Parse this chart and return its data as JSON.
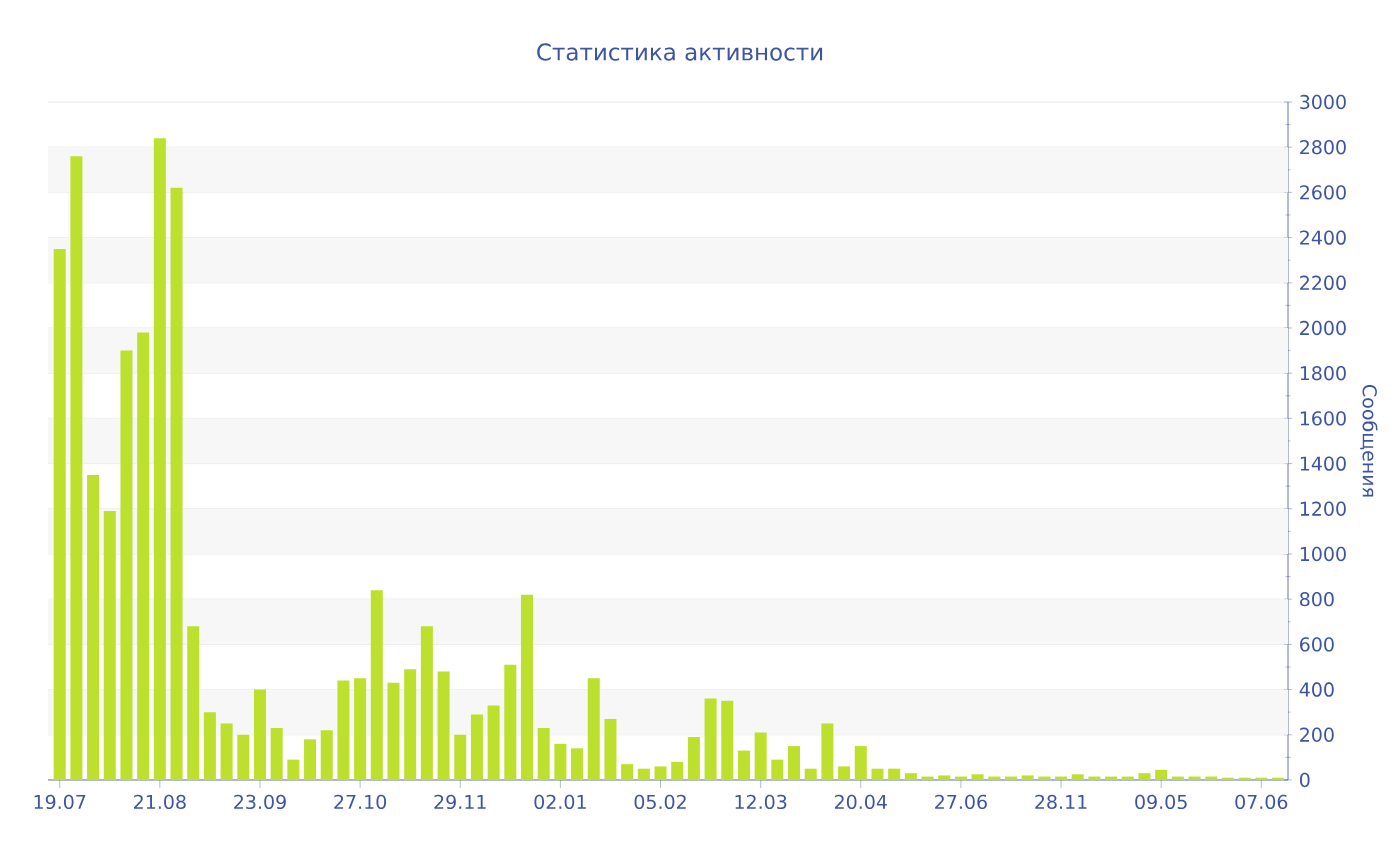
{
  "chart_data": {
    "type": "bar",
    "title": "Статистика активности",
    "ylabel": "Сообщения",
    "categories": [
      "19.07",
      null,
      null,
      null,
      null,
      null,
      "21.08",
      null,
      null,
      null,
      null,
      null,
      "23.09",
      null,
      null,
      null,
      null,
      null,
      "27.10",
      null,
      null,
      null,
      null,
      null,
      "29.11",
      null,
      null,
      null,
      null,
      null,
      "02.01",
      null,
      null,
      null,
      null,
      null,
      "05.02",
      null,
      null,
      null,
      null,
      null,
      "12.03",
      null,
      null,
      null,
      null,
      null,
      "20.04",
      null,
      null,
      null,
      null,
      null,
      "27.06",
      null,
      null,
      null,
      null,
      null,
      "28.11",
      null,
      null,
      null,
      null,
      null,
      "09.05",
      null,
      null,
      null,
      null,
      null,
      "07.06",
      null
    ],
    "values": [
      2350,
      2760,
      1350,
      1190,
      1900,
      1980,
      2840,
      2620,
      680,
      300,
      250,
      200,
      400,
      230,
      90,
      180,
      220,
      440,
      450,
      840,
      430,
      490,
      680,
      480,
      200,
      290,
      330,
      510,
      820,
      230,
      160,
      140,
      450,
      270,
      70,
      50,
      60,
      80,
      190,
      360,
      350,
      130,
      210,
      90,
      150,
      50,
      250,
      60,
      150,
      50,
      50,
      30,
      15,
      20,
      15,
      25,
      15,
      15,
      20,
      15,
      15,
      25,
      15,
      15,
      15,
      30,
      45,
      15,
      15,
      15,
      10,
      10,
      10,
      10
    ],
    "color": "#bde02e",
    "ylim": [
      0,
      3000
    ],
    "yticks": [
      0,
      200,
      400,
      600,
      800,
      1000,
      1200,
      1400,
      1600,
      1800,
      2000,
      2200,
      2400,
      2600,
      2800,
      3000
    ],
    "grid": "y"
  }
}
